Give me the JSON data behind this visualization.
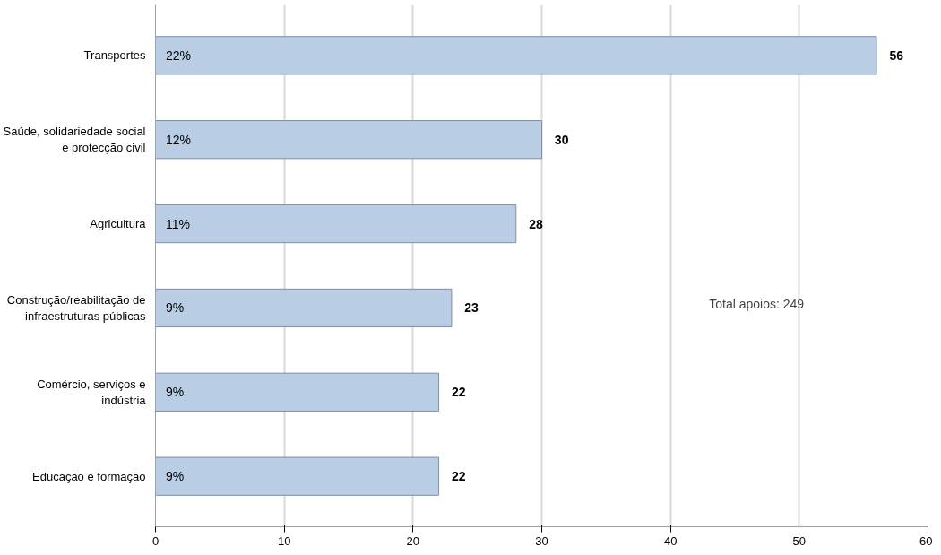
{
  "chart_data": {
    "type": "bar",
    "orientation": "horizontal",
    "categories": [
      "Transportes",
      "Saúde, solidariedade social\ne protecção civil",
      "Agricultura",
      "Construção/reabilitação de\ninfraestruturas públicas",
      "Comércio, serviços e\nindústria",
      "Educação e formação"
    ],
    "values": [
      56,
      30,
      28,
      23,
      22,
      22
    ],
    "color": "#b9cde5",
    "xlim": [
      0,
      60
    ],
    "xticks": [
      0,
      10,
      20,
      30,
      40,
      50,
      60
    ],
    "grid": "x",
    "data_labels": true,
    "annotations": [
      "22%",
      "12%",
      "11%",
      "9%",
      "9%",
      "9%",
      "Total apoios:  249"
    ]
  }
}
